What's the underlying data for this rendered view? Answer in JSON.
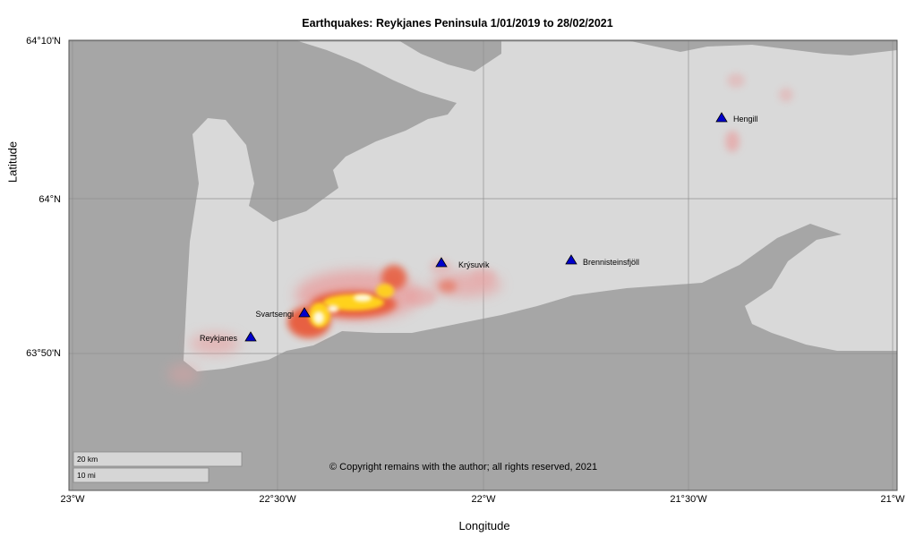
{
  "title": "Earthquakes: Reykjanes Peninsula 1/01/2019 to 28/02/2021",
  "axes": {
    "xlabel": "Longitude",
    "ylabel": "Latitude",
    "lat_ticks": [
      "64°10'N",
      "64°N",
      "63°50'N"
    ],
    "lon_ticks": [
      "23°W",
      "22°30'W",
      "22°W",
      "21°30'W",
      "21°W"
    ]
  },
  "map": {
    "lon_range_deg_west": [
      23.0,
      21.0
    ],
    "lat_range_deg_north": [
      63.7,
      64.1667
    ],
    "ocean_color": "#a6a6a6",
    "land_color": "#d9d9d9",
    "grid_color": "#8f8f8f"
  },
  "volcanoes": [
    {
      "name": "Reykjanes",
      "marker": "triangle",
      "color": "#0000cc"
    },
    {
      "name": "Svartsengi",
      "marker": "triangle",
      "color": "#0000cc"
    },
    {
      "name": "Krýsuvík",
      "marker": "triangle",
      "color": "#0000cc"
    },
    {
      "name": "Brennisteinsfjöll",
      "marker": "triangle",
      "color": "#0000cc"
    },
    {
      "name": "Hengill",
      "marker": "triangle",
      "color": "#0000cc"
    }
  ],
  "scale_bar": {
    "km_label": "20 km",
    "mi_label": "10 mi"
  },
  "copyright": "© Copyright remains with the author; all rights reserved, 2021",
  "heat_colors": [
    "#e8a0a0",
    "#e85a3a",
    "#ffd21a",
    "#fffbe0"
  ]
}
